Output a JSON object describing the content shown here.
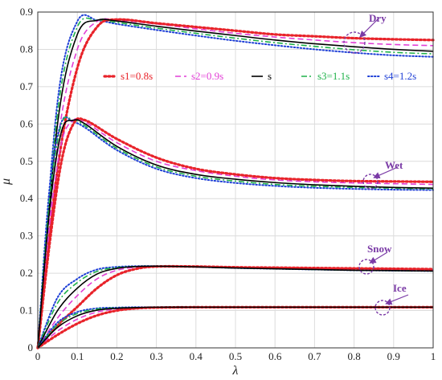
{
  "chart_data": {
    "type": "line",
    "title": "",
    "xlabel": "λ",
    "ylabel": "μ",
    "xlim": [
      0,
      1
    ],
    "ylim": [
      0,
      0.9
    ],
    "xticks": [
      "0",
      "0.1",
      "0.2",
      "0.3",
      "0.4",
      "0.5",
      "0.6",
      "0.7",
      "0.8",
      "0.9",
      "1"
    ],
    "yticks": [
      "0",
      "0.1",
      "0.2",
      "0.3",
      "0.4",
      "0.5",
      "0.6",
      "0.7",
      "0.8",
      "0.9"
    ],
    "grid": true,
    "legend": {
      "placement": "top-center",
      "entries": [
        {
          "label": "s1=0.8s",
          "color": "#e8232a",
          "style": "dotted-bold"
        },
        {
          "label": "s2=0.9s",
          "color": "#e23fd6",
          "style": "dashed"
        },
        {
          "label": "s",
          "color": "#000000",
          "style": "solid"
        },
        {
          "label": "s3=1.1s",
          "color": "#1fb24a",
          "style": "dashdot"
        },
        {
          "label": "s4=1.2s",
          "color": "#1e3fd6",
          "style": "dotted"
        }
      ]
    },
    "annotations": [
      "Dry",
      "Wet",
      "Snow",
      "Ice"
    ],
    "annotation_color": "#7a3aa6",
    "groups": [
      {
        "surface": "Dry",
        "x": [
          0,
          0.05,
          0.1,
          0.15,
          0.2,
          0.3,
          0.4,
          0.5,
          0.6,
          0.7,
          0.8,
          0.9,
          1.0
        ],
        "series": [
          {
            "name": "s1=0.8s",
            "values": [
              0,
              0.48,
              0.75,
              0.86,
              0.88,
              0.87,
              0.86,
              0.85,
              0.84,
              0.835,
              0.83,
              0.827,
              0.825
            ]
          },
          {
            "name": "s2=0.9s",
            "values": [
              0,
              0.55,
              0.8,
              0.875,
              0.878,
              0.868,
              0.855,
              0.843,
              0.833,
              0.825,
              0.818,
              0.813,
              0.81
            ]
          },
          {
            "name": "s",
            "values": [
              0,
              0.6,
              0.84,
              0.878,
              0.876,
              0.862,
              0.849,
              0.837,
              0.825,
              0.815,
              0.807,
              0.8,
              0.795
            ]
          },
          {
            "name": "s3=1.1s",
            "values": [
              0,
              0.63,
              0.86,
              0.878,
              0.872,
              0.857,
              0.843,
              0.83,
              0.818,
              0.808,
              0.799,
              0.792,
              0.788
            ]
          },
          {
            "name": "s4=1.2s",
            "values": [
              0,
              0.66,
              0.875,
              0.878,
              0.868,
              0.852,
              0.837,
              0.823,
              0.811,
              0.8,
              0.791,
              0.784,
              0.78
            ]
          }
        ]
      },
      {
        "surface": "Wet",
        "x": [
          0,
          0.03,
          0.06,
          0.09,
          0.12,
          0.2,
          0.3,
          0.4,
          0.5,
          0.6,
          0.7,
          0.8,
          0.9,
          1.0
        ],
        "series": [
          {
            "name": "s1=0.8s",
            "values": [
              0,
              0.28,
              0.5,
              0.6,
              0.61,
              0.56,
              0.51,
              0.48,
              0.465,
              0.455,
              0.45,
              0.447,
              0.446,
              0.445
            ]
          },
          {
            "name": "s2=0.9s",
            "values": [
              0,
              0.33,
              0.55,
              0.61,
              0.605,
              0.55,
              0.5,
              0.475,
              0.46,
              0.45,
              0.445,
              0.442,
              0.44,
              0.438
            ]
          },
          {
            "name": "s",
            "values": [
              0,
              0.37,
              0.58,
              0.61,
              0.6,
              0.54,
              0.49,
              0.465,
              0.452,
              0.443,
              0.437,
              0.433,
              0.43,
              0.428
            ]
          },
          {
            "name": "s3=1.1s",
            "values": [
              0,
              0.4,
              0.6,
              0.61,
              0.595,
              0.535,
              0.485,
              0.46,
              0.447,
              0.438,
              0.433,
              0.43,
              0.428,
              0.426
            ]
          },
          {
            "name": "s4=1.2s",
            "values": [
              0,
              0.43,
              0.605,
              0.605,
              0.59,
              0.53,
              0.48,
              0.455,
              0.442,
              0.434,
              0.429,
              0.426,
              0.424,
              0.423
            ]
          }
        ]
      },
      {
        "surface": "Snow",
        "x": [
          0,
          0.05,
          0.1,
          0.15,
          0.2,
          0.25,
          0.3,
          0.4,
          0.5,
          0.6,
          0.7,
          0.8,
          0.9,
          1.0
        ],
        "series": [
          {
            "name": "s1=0.8s",
            "values": [
              0,
              0.06,
              0.11,
              0.16,
              0.195,
              0.212,
              0.218,
              0.218,
              0.216,
              0.215,
              0.214,
              0.213,
              0.212,
              0.211
            ]
          },
          {
            "name": "s2=0.9s",
            "values": [
              0,
              0.08,
              0.14,
              0.185,
              0.208,
              0.216,
              0.218,
              0.217,
              0.215,
              0.213,
              0.212,
              0.211,
              0.21,
              0.209
            ]
          },
          {
            "name": "s",
            "values": [
              0,
              0.1,
              0.16,
              0.198,
              0.213,
              0.218,
              0.219,
              0.217,
              0.214,
              0.212,
              0.21,
              0.208,
              0.207,
              0.206
            ]
          },
          {
            "name": "s3=1.1s",
            "values": [
              0,
              0.12,
              0.175,
              0.205,
              0.215,
              0.218,
              0.219,
              0.217,
              0.214,
              0.212,
              0.21,
              0.208,
              0.207,
              0.206
            ]
          },
          {
            "name": "s4=1.2s",
            "values": [
              0,
              0.135,
              0.185,
              0.21,
              0.217,
              0.219,
              0.219,
              0.217,
              0.214,
              0.212,
              0.21,
              0.208,
              0.207,
              0.206
            ]
          }
        ]
      },
      {
        "surface": "Ice",
        "x": [
          0,
          0.05,
          0.1,
          0.15,
          0.2,
          0.25,
          0.3,
          0.4,
          0.5,
          0.6,
          0.7,
          0.8,
          0.9,
          1.0
        ],
        "series": [
          {
            "name": "s1=0.8s",
            "values": [
              0,
              0.035,
              0.065,
              0.087,
              0.1,
              0.106,
              0.108,
              0.109,
              0.109,
              0.109,
              0.109,
              0.109,
              0.109,
              0.109
            ]
          },
          {
            "name": "s2=0.9s",
            "values": [
              0,
              0.045,
              0.077,
              0.096,
              0.104,
              0.107,
              0.108,
              0.109,
              0.109,
              0.109,
              0.109,
              0.109,
              0.109,
              0.109
            ]
          },
          {
            "name": "s",
            "values": [
              0,
              0.055,
              0.086,
              0.101,
              0.106,
              0.108,
              0.109,
              0.109,
              0.109,
              0.109,
              0.109,
              0.109,
              0.109,
              0.109
            ]
          },
          {
            "name": "s3=1.1s",
            "values": [
              0,
              0.062,
              0.092,
              0.104,
              0.107,
              0.108,
              0.109,
              0.109,
              0.109,
              0.109,
              0.109,
              0.109,
              0.109,
              0.109
            ]
          },
          {
            "name": "s4=1.2s",
            "values": [
              0,
              0.068,
              0.096,
              0.106,
              0.108,
              0.109,
              0.109,
              0.109,
              0.109,
              0.109,
              0.109,
              0.109,
              0.109,
              0.109
            ]
          }
        ]
      }
    ]
  }
}
